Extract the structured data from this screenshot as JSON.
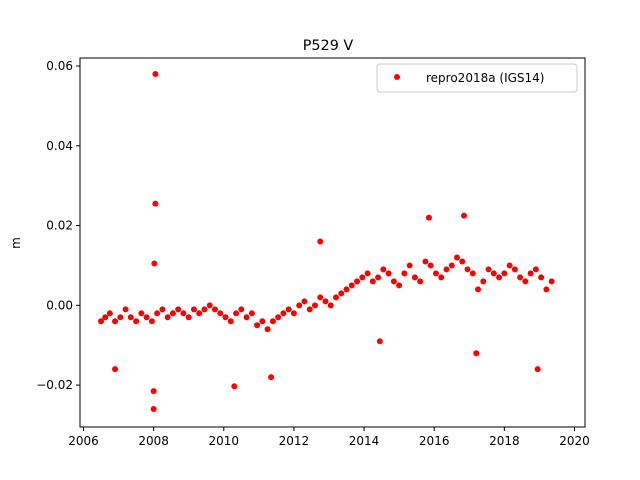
{
  "chart_data": {
    "type": "scatter",
    "title": "P529 V",
    "xlabel": "",
    "ylabel": "m",
    "xlim": [
      2005.9,
      2020.3
    ],
    "ylim": [
      -0.0305,
      0.062
    ],
    "xticks": [
      2006,
      2008,
      2010,
      2012,
      2014,
      2016,
      2018,
      2020
    ],
    "xtick_labels": [
      "2006",
      "2008",
      "2010",
      "2012",
      "2014",
      "2016",
      "2018",
      "2020"
    ],
    "yticks": [
      -0.02,
      0.0,
      0.02,
      0.04,
      0.06
    ],
    "ytick_labels": [
      "−0.02",
      "0.00",
      "0.02",
      "0.04",
      "0.06"
    ],
    "grid": false,
    "legend_position": "top-right",
    "series": [
      {
        "name": "repro2018a (IGS14)",
        "color": "#ff0000",
        "marker": "circle",
        "x": [
          2006.5,
          2006.62,
          2006.75,
          2006.9,
          2007.05,
          2007.2,
          2007.35,
          2007.5,
          2007.65,
          2007.8,
          2007.95,
          2008.1,
          2008.25,
          2008.4,
          2008.55,
          2008.7,
          2008.85,
          2009.0,
          2009.15,
          2009.3,
          2009.45,
          2009.6,
          2009.75,
          2009.9,
          2010.05,
          2010.2,
          2010.35,
          2010.5,
          2010.65,
          2010.8,
          2010.95,
          2011.1,
          2011.25,
          2011.4,
          2011.55,
          2011.7,
          2011.85,
          2012.0,
          2012.15,
          2012.3,
          2012.45,
          2012.6,
          2012.75,
          2012.9,
          2013.05,
          2013.2,
          2013.35,
          2013.5,
          2013.65,
          2013.8,
          2013.95,
          2014.1,
          2014.25,
          2014.4,
          2014.55,
          2014.7,
          2014.85,
          2015.0,
          2015.15,
          2015.3,
          2015.45,
          2015.6,
          2015.75,
          2015.9,
          2016.05,
          2016.2,
          2016.35,
          2016.5,
          2016.65,
          2016.8,
          2016.95,
          2017.1,
          2017.25,
          2017.4,
          2017.55,
          2017.7,
          2017.85,
          2018.0,
          2018.15,
          2018.3,
          2018.45,
          2018.6,
          2018.75,
          2018.9,
          2019.05,
          2019.2,
          2019.35,
          2008.05,
          2008.05,
          2008.02,
          2008.0,
          2008.0,
          2010.3,
          2014.45,
          2016.85,
          2015.85,
          2018.95,
          2012.75,
          2017.2,
          2011.35,
          2006.9
        ],
        "y": [
          -0.004,
          -0.003,
          -0.002,
          -0.004,
          -0.003,
          -0.001,
          -0.003,
          -0.004,
          -0.002,
          -0.003,
          -0.004,
          -0.002,
          -0.001,
          -0.003,
          -0.002,
          -0.001,
          -0.002,
          -0.003,
          -0.001,
          -0.002,
          -0.001,
          0.0,
          -0.001,
          -0.002,
          -0.003,
          -0.004,
          -0.002,
          -0.001,
          -0.003,
          -0.002,
          -0.005,
          -0.004,
          -0.006,
          -0.004,
          -0.003,
          -0.002,
          -0.001,
          -0.002,
          0.0,
          0.001,
          -0.001,
          0.0,
          0.002,
          0.001,
          0.0,
          0.002,
          0.003,
          0.004,
          0.005,
          0.006,
          0.007,
          0.008,
          0.006,
          0.007,
          0.009,
          0.008,
          0.006,
          0.005,
          0.008,
          0.01,
          0.007,
          0.006,
          0.011,
          0.01,
          0.008,
          0.007,
          0.009,
          0.01,
          0.012,
          0.011,
          0.009,
          0.008,
          0.004,
          0.006,
          0.009,
          0.008,
          0.007,
          0.008,
          0.01,
          0.009,
          0.007,
          0.006,
          0.008,
          0.009,
          0.007,
          0.004,
          0.006,
          0.058,
          0.0255,
          0.0105,
          -0.0215,
          -0.026,
          -0.0203,
          -0.009,
          0.0225,
          0.022,
          -0.016,
          0.016,
          -0.012,
          -0.018,
          -0.016
        ]
      }
    ]
  }
}
